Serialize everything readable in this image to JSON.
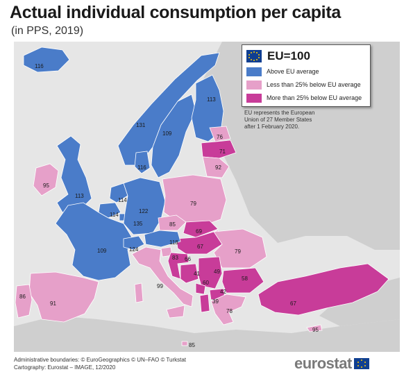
{
  "title": "Actual individual consumption per capita",
  "subtitle": "(in PPS, 2019)",
  "legend": {
    "title": "EU=100",
    "flag_icon": "eu-flag-icon",
    "categories": [
      {
        "label": "Above EU average",
        "color": "#4a7cc9"
      },
      {
        "label": "Less than 25% below EU average",
        "color": "#e6a0c9"
      },
      {
        "label": "More than 25% below EU average",
        "color": "#c83c99"
      }
    ],
    "note": "EU represents the European Union of 27 Member States after 1 February 2020."
  },
  "colors": {
    "non_eu": "#cfcfcf",
    "sea": "#e6e6e6"
  },
  "countries": [
    {
      "id": "IS",
      "value": "116",
      "category": 0
    },
    {
      "id": "IE",
      "value": "95",
      "category": 1
    },
    {
      "id": "UK",
      "value": "113",
      "category": 0
    },
    {
      "id": "NO",
      "value": "131",
      "category": 0
    },
    {
      "id": "SE",
      "value": "109",
      "category": 0
    },
    {
      "id": "FI",
      "value": "113",
      "category": 0
    },
    {
      "id": "DK",
      "value": "116",
      "category": 0
    },
    {
      "id": "EE",
      "value": "76",
      "category": 1
    },
    {
      "id": "LV",
      "value": "71",
      "category": 2
    },
    {
      "id": "LT",
      "value": "92",
      "category": 1
    },
    {
      "id": "NL",
      "value": "114",
      "category": 0
    },
    {
      "id": "BE",
      "value": "114",
      "category": 0
    },
    {
      "id": "LU",
      "value": "135",
      "category": 0
    },
    {
      "id": "DE",
      "value": "122",
      "category": 0
    },
    {
      "id": "PL",
      "value": "79",
      "category": 1
    },
    {
      "id": "CZ",
      "value": "85",
      "category": 1
    },
    {
      "id": "SK",
      "value": "69",
      "category": 2
    },
    {
      "id": "HU",
      "value": "67",
      "category": 2
    },
    {
      "id": "FR",
      "value": "109",
      "category": 0
    },
    {
      "id": "CH",
      "value": "124",
      "category": 0
    },
    {
      "id": "AT",
      "value": "118",
      "category": 0
    },
    {
      "id": "SI",
      "value": "83",
      "category": 1
    },
    {
      "id": "HR",
      "value": "66",
      "category": 2
    },
    {
      "id": "RO",
      "value": "79",
      "category": 1
    },
    {
      "id": "BA",
      "value": "41",
      "category": 2
    },
    {
      "id": "RS",
      "value": "49",
      "category": 2
    },
    {
      "id": "ME",
      "value": "60",
      "category": 2
    },
    {
      "id": "AL",
      "value": "39",
      "category": 2
    },
    {
      "id": "MK",
      "value": "42",
      "category": 2
    },
    {
      "id": "BG",
      "value": "58",
      "category": 2
    },
    {
      "id": "GR",
      "value": "78",
      "category": 1
    },
    {
      "id": "TR",
      "value": "67",
      "category": 2
    },
    {
      "id": "CY",
      "value": "95",
      "category": 1
    },
    {
      "id": "IT",
      "value": "99",
      "category": 1
    },
    {
      "id": "MT",
      "value": "85",
      "category": 1
    },
    {
      "id": "ES",
      "value": "91",
      "category": 1
    },
    {
      "id": "PT",
      "value": "86",
      "category": 1
    }
  ],
  "footer": {
    "line1": "Administrative boundaries: © EuroGeographics © UN–FAO © Turkstat",
    "line2": "Cartography: Eurostat – IMAGE, 12/2020"
  },
  "logo": {
    "text": "eurostat",
    "icon": "eu-flag-icon"
  }
}
